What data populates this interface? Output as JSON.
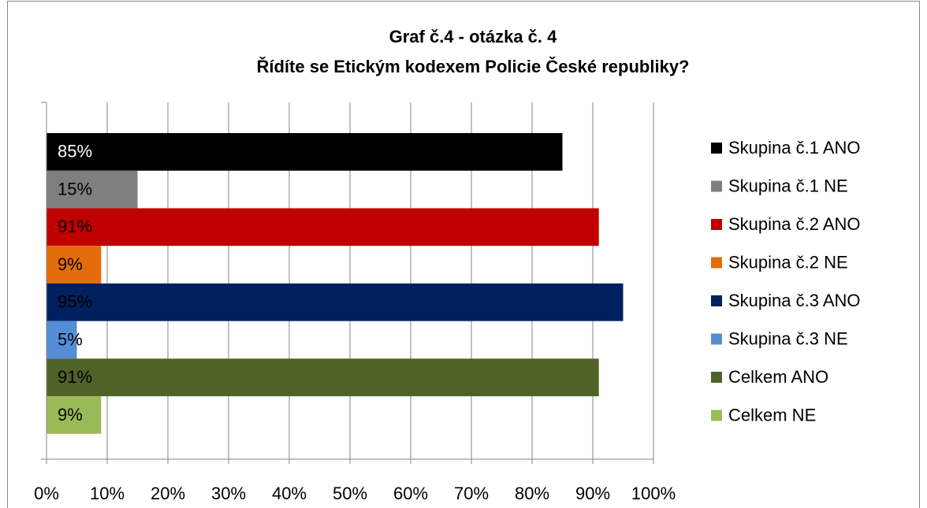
{
  "chart_data": {
    "type": "barh",
    "title": [
      "Graf č.4 - otázka č. 4",
      "Řídíte se Etickým kodexem Policie České republiky?"
    ],
    "categories": [
      null
    ],
    "series": [
      {
        "name": "Skupina č.1 ANO",
        "color": "#000000",
        "values": [
          85
        ],
        "value_labels": [
          "85%"
        ]
      },
      {
        "name": "Skupina č.1 NE",
        "color": "#7f7f7f",
        "values": [
          15
        ],
        "value_labels": [
          "15%"
        ]
      },
      {
        "name": "Skupina č.2 ANO",
        "color": "#c00000",
        "values": [
          91
        ],
        "value_labels": [
          "91%"
        ]
      },
      {
        "name": "Skupina č.2 NE",
        "color": "#e46c0a",
        "values": [
          9
        ],
        "value_labels": [
          "9%"
        ]
      },
      {
        "name": "Skupina č.3 ANO",
        "color": "#002060",
        "values": [
          95
        ],
        "value_labels": [
          "95%"
        ]
      },
      {
        "name": "Skupina č.3 NE",
        "color": "#558ed5",
        "values": [
          5
        ],
        "value_labels": [
          "5%"
        ]
      },
      {
        "name": "Celkem ANO",
        "color": "#4f6228",
        "values": [
          91
        ],
        "value_labels": [
          "91%"
        ]
      },
      {
        "name": "Celkem NE",
        "color": "#9bbb59",
        "values": [
          9
        ],
        "value_labels": [
          "9%"
        ]
      }
    ],
    "xlim": [
      0,
      100
    ],
    "xticks": [
      {
        "value": 0,
        "label": "0%"
      },
      {
        "value": 10,
        "label": "10%"
      },
      {
        "value": 20,
        "label": "20%"
      },
      {
        "value": 30,
        "label": "30%"
      },
      {
        "value": 40,
        "label": "40%"
      },
      {
        "value": 50,
        "label": "50%"
      },
      {
        "value": 60,
        "label": "60%"
      },
      {
        "value": 70,
        "label": "70%"
      },
      {
        "value": 80,
        "label": "80%"
      },
      {
        "value": 90,
        "label": "90%"
      },
      {
        "value": 100,
        "label": "100%"
      }
    ],
    "grid": true,
    "legend": "right"
  }
}
